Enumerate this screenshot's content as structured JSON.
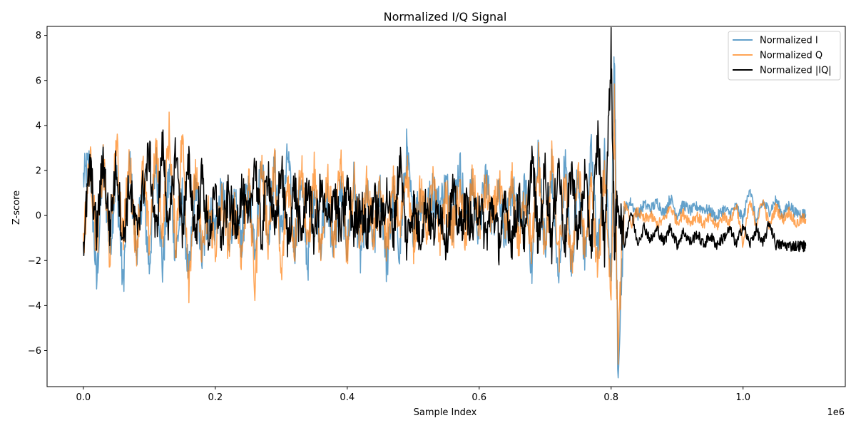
{
  "chart_data": {
    "type": "line",
    "title": "Normalized I/Q Signal",
    "xlabel": "Sample Index",
    "ylabel": "Z-score",
    "x_offset_label": "1e6",
    "xlim": [
      -0.055,
      1.155
    ],
    "ylim": [
      -7.6,
      8.4
    ],
    "x_ticks": [
      0.0,
      0.2,
      0.4,
      0.6,
      0.8,
      1.0
    ],
    "x_tick_labels": [
      "0.0",
      "0.2",
      "0.4",
      "0.6",
      "0.8",
      "1.0"
    ],
    "y_ticks": [
      -6,
      -4,
      -2,
      0,
      2,
      4,
      6,
      8
    ],
    "y_tick_labels": [
      "−6",
      "−4",
      "−2",
      "0",
      "2",
      "4",
      "6",
      "8"
    ],
    "grid": false,
    "legend_position": "top-right",
    "x_range": [
      0.0,
      1.095
    ],
    "series": [
      {
        "name": "Normalized I",
        "color": "#1f77b4",
        "alpha": 0.7,
        "x": [
          0.0,
          0.01,
          0.02,
          0.03,
          0.04,
          0.05,
          0.06,
          0.07,
          0.08,
          0.09,
          0.1,
          0.11,
          0.12,
          0.13,
          0.14,
          0.15,
          0.16,
          0.17,
          0.18,
          0.19,
          0.2,
          0.21,
          0.22,
          0.23,
          0.24,
          0.25,
          0.26,
          0.27,
          0.28,
          0.29,
          0.3,
          0.31,
          0.32,
          0.33,
          0.34,
          0.35,
          0.36,
          0.37,
          0.38,
          0.39,
          0.4,
          0.41,
          0.42,
          0.43,
          0.44,
          0.45,
          0.46,
          0.47,
          0.48,
          0.49,
          0.5,
          0.51,
          0.52,
          0.53,
          0.54,
          0.55,
          0.56,
          0.57,
          0.58,
          0.59,
          0.6,
          0.61,
          0.62,
          0.63,
          0.64,
          0.65,
          0.66,
          0.67,
          0.68,
          0.69,
          0.7,
          0.71,
          0.72,
          0.73,
          0.74,
          0.75,
          0.76,
          0.77,
          0.78,
          0.79,
          0.8,
          0.805,
          0.81,
          0.82,
          0.83,
          0.84,
          0.85,
          0.86,
          0.87,
          0.88,
          0.89,
          0.9,
          0.91,
          0.92,
          0.93,
          0.94,
          0.95,
          0.96,
          0.97,
          0.98,
          0.99,
          1.0,
          1.01,
          1.02,
          1.03,
          1.04,
          1.05,
          1.06,
          1.07,
          1.08,
          1.09,
          1.095
        ],
        "values": [
          1.6,
          2.4,
          -3.1,
          2.5,
          -1.5,
          1.9,
          -3.2,
          2.4,
          -1.6,
          1.2,
          -2.3,
          2.6,
          -2.4,
          1.9,
          -1.8,
          0.9,
          -2.9,
          1.6,
          -2.0,
          0.3,
          -0.6,
          1.0,
          -0.9,
          0.4,
          -1.1,
          1.3,
          -1.3,
          2.6,
          -0.9,
          2.2,
          -1.0,
          2.8,
          -1.5,
          1.7,
          -2.2,
          1.4,
          -1.1,
          0.6,
          -1.5,
          1.2,
          -1.4,
          1.5,
          -1.9,
          1.0,
          -1.6,
          1.3,
          -2.3,
          0.9,
          -1.6,
          2.9,
          -0.4,
          0.8,
          0.2,
          1.1,
          0.4,
          1.4,
          -0.2,
          2.3,
          -0.1,
          1.3,
          -0.8,
          1.9,
          -0.4,
          1.3,
          -1.0,
          1.4,
          -0.6,
          1.2,
          -2.4,
          2.9,
          -1.6,
          2.1,
          -3.3,
          2.6,
          -2.6,
          2.2,
          -2.0,
          2.8,
          -1.5,
          2.5,
          -2.8,
          7.6,
          -6.9,
          0.3,
          0.6,
          0.0,
          0.5,
          0.3,
          0.6,
          0.1,
          0.8,
          0.0,
          0.5,
          0.2,
          0.4,
          0.3,
          0.2,
          -0.1,
          0.3,
          0.1,
          0.4,
          -0.2,
          1.3,
          -0.3,
          0.6,
          0.2,
          0.7,
          0.0,
          0.5,
          0.1,
          0.1,
          0.05
        ]
      },
      {
        "name": "Normalized Q",
        "color": "#ff7f0e",
        "alpha": 0.7,
        "x": [
          0.0,
          0.01,
          0.02,
          0.03,
          0.04,
          0.05,
          0.06,
          0.07,
          0.08,
          0.09,
          0.1,
          0.11,
          0.12,
          0.13,
          0.14,
          0.15,
          0.16,
          0.17,
          0.18,
          0.19,
          0.2,
          0.21,
          0.22,
          0.23,
          0.24,
          0.25,
          0.26,
          0.27,
          0.28,
          0.29,
          0.3,
          0.31,
          0.32,
          0.33,
          0.34,
          0.35,
          0.36,
          0.37,
          0.38,
          0.39,
          0.4,
          0.41,
          0.42,
          0.43,
          0.44,
          0.45,
          0.46,
          0.47,
          0.48,
          0.49,
          0.5,
          0.51,
          0.52,
          0.53,
          0.54,
          0.55,
          0.56,
          0.57,
          0.58,
          0.59,
          0.6,
          0.61,
          0.62,
          0.63,
          0.64,
          0.65,
          0.66,
          0.67,
          0.68,
          0.69,
          0.7,
          0.71,
          0.72,
          0.73,
          0.74,
          0.75,
          0.76,
          0.77,
          0.78,
          0.79,
          0.8,
          0.805,
          0.81,
          0.82,
          0.83,
          0.84,
          0.85,
          0.86,
          0.87,
          0.88,
          0.89,
          0.9,
          0.91,
          0.92,
          0.93,
          0.94,
          0.95,
          0.96,
          0.97,
          0.98,
          0.99,
          1.0,
          1.01,
          1.02,
          1.03,
          1.04,
          1.05,
          1.06,
          1.07,
          1.08,
          1.09,
          1.095
        ],
        "values": [
          -1.3,
          2.6,
          -1.5,
          2.4,
          -1.8,
          3.3,
          -1.0,
          2.5,
          -1.5,
          2.0,
          -1.2,
          3.0,
          -0.8,
          3.7,
          -1.3,
          3.6,
          -2.9,
          2.0,
          -1.5,
          0.3,
          -1.4,
          0.6,
          -1.2,
          0.4,
          -1.8,
          1.8,
          -3.2,
          2.4,
          -1.0,
          2.3,
          -2.9,
          1.8,
          -1.5,
          2.5,
          -1.6,
          1.9,
          -2.1,
          2.0,
          -1.4,
          2.5,
          -1.8,
          1.6,
          -1.0,
          1.4,
          -0.9,
          1.0,
          -1.3,
          1.3,
          -0.8,
          2.4,
          -1.4,
          1.2,
          -0.6,
          1.4,
          -1.0,
          0.8,
          -0.7,
          1.0,
          -1.0,
          1.5,
          -0.4,
          1.2,
          -0.3,
          1.3,
          -0.8,
          1.4,
          -1.3,
          1.0,
          -1.5,
          2.4,
          -1.8,
          2.7,
          -2.1,
          1.5,
          -2.5,
          2.3,
          -1.6,
          1.2,
          -2.6,
          2.1,
          -3.7,
          5.0,
          -6.1,
          0.6,
          -0.4,
          0.2,
          -0.2,
          0.0,
          -0.4,
          -0.2,
          0.4,
          -0.3,
          0.1,
          -0.3,
          0.0,
          -0.4,
          -0.1,
          -0.5,
          0.0,
          -0.3,
          0.5,
          -1.3,
          0.6,
          -0.4,
          0.7,
          -0.5,
          0.4,
          -0.2,
          0.2,
          -0.4,
          -0.15,
          -0.15
        ]
      },
      {
        "name": "Normalized |IQ|",
        "color": "#000000",
        "alpha": 1.0,
        "x": [
          0.0,
          0.01,
          0.02,
          0.03,
          0.04,
          0.05,
          0.06,
          0.07,
          0.08,
          0.09,
          0.1,
          0.11,
          0.12,
          0.13,
          0.14,
          0.15,
          0.16,
          0.17,
          0.18,
          0.19,
          0.2,
          0.21,
          0.22,
          0.23,
          0.24,
          0.25,
          0.26,
          0.27,
          0.28,
          0.29,
          0.3,
          0.31,
          0.32,
          0.33,
          0.34,
          0.35,
          0.36,
          0.37,
          0.38,
          0.39,
          0.4,
          0.41,
          0.42,
          0.43,
          0.44,
          0.45,
          0.46,
          0.47,
          0.48,
          0.49,
          0.5,
          0.51,
          0.52,
          0.53,
          0.54,
          0.55,
          0.56,
          0.57,
          0.58,
          0.59,
          0.6,
          0.61,
          0.62,
          0.63,
          0.64,
          0.65,
          0.66,
          0.67,
          0.68,
          0.69,
          0.7,
          0.71,
          0.72,
          0.73,
          0.74,
          0.75,
          0.76,
          0.77,
          0.78,
          0.79,
          0.8,
          0.805,
          0.81,
          0.82,
          0.83,
          0.84,
          0.85,
          0.86,
          0.87,
          0.88,
          0.89,
          0.9,
          0.91,
          0.92,
          0.93,
          0.94,
          0.95,
          0.96,
          0.97,
          0.98,
          0.99,
          1.0,
          1.01,
          1.02,
          1.03,
          1.04,
          1.05,
          1.06,
          1.07,
          1.08,
          1.09,
          1.095
        ],
        "values": [
          -1.3,
          2.3,
          -0.8,
          2.6,
          -0.6,
          2.4,
          -1.2,
          1.4,
          -0.8,
          1.1,
          2.8,
          -1.0,
          3.2,
          -0.8,
          3.0,
          -0.6,
          2.2,
          -0.9,
          1.8,
          -1.0,
          0.9,
          -1.1,
          1.0,
          -0.6,
          1.1,
          -0.5,
          2.5,
          -1.1,
          2.2,
          -0.9,
          2.2,
          -1.2,
          1.4,
          -1.1,
          1.5,
          -1.0,
          1.2,
          -0.5,
          1.1,
          -0.8,
          1.3,
          -0.6,
          0.6,
          -0.9,
          0.8,
          -0.4,
          1.0,
          -0.8,
          2.6,
          -1.2,
          0.5,
          -1.0,
          0.6,
          -0.8,
          0.5,
          -1.1,
          1.0,
          -0.6,
          0.4,
          -0.6,
          0.7,
          -1.0,
          0.5,
          -1.2,
          0.4,
          -1.1,
          0.8,
          -1.2,
          2.7,
          -1.3,
          2.1,
          -1.2,
          2.5,
          -1.3,
          2.2,
          -1.1,
          1.7,
          -1.3,
          3.6,
          -1.3,
          7.4,
          -1.3,
          0.8,
          -1.3,
          0.2,
          -1.2,
          -0.5,
          -1.1,
          -0.6,
          -1.2,
          -0.5,
          -1.3,
          -0.7,
          -1.2,
          -0.8,
          -1.3,
          -0.9,
          -1.3,
          -1.0,
          -0.6,
          -1.3,
          -0.4,
          -1.3,
          -0.6,
          -1.3,
          -0.3,
          -1.3,
          -1.3,
          -1.35,
          -1.35,
          -1.35,
          -1.35
        ]
      }
    ]
  }
}
